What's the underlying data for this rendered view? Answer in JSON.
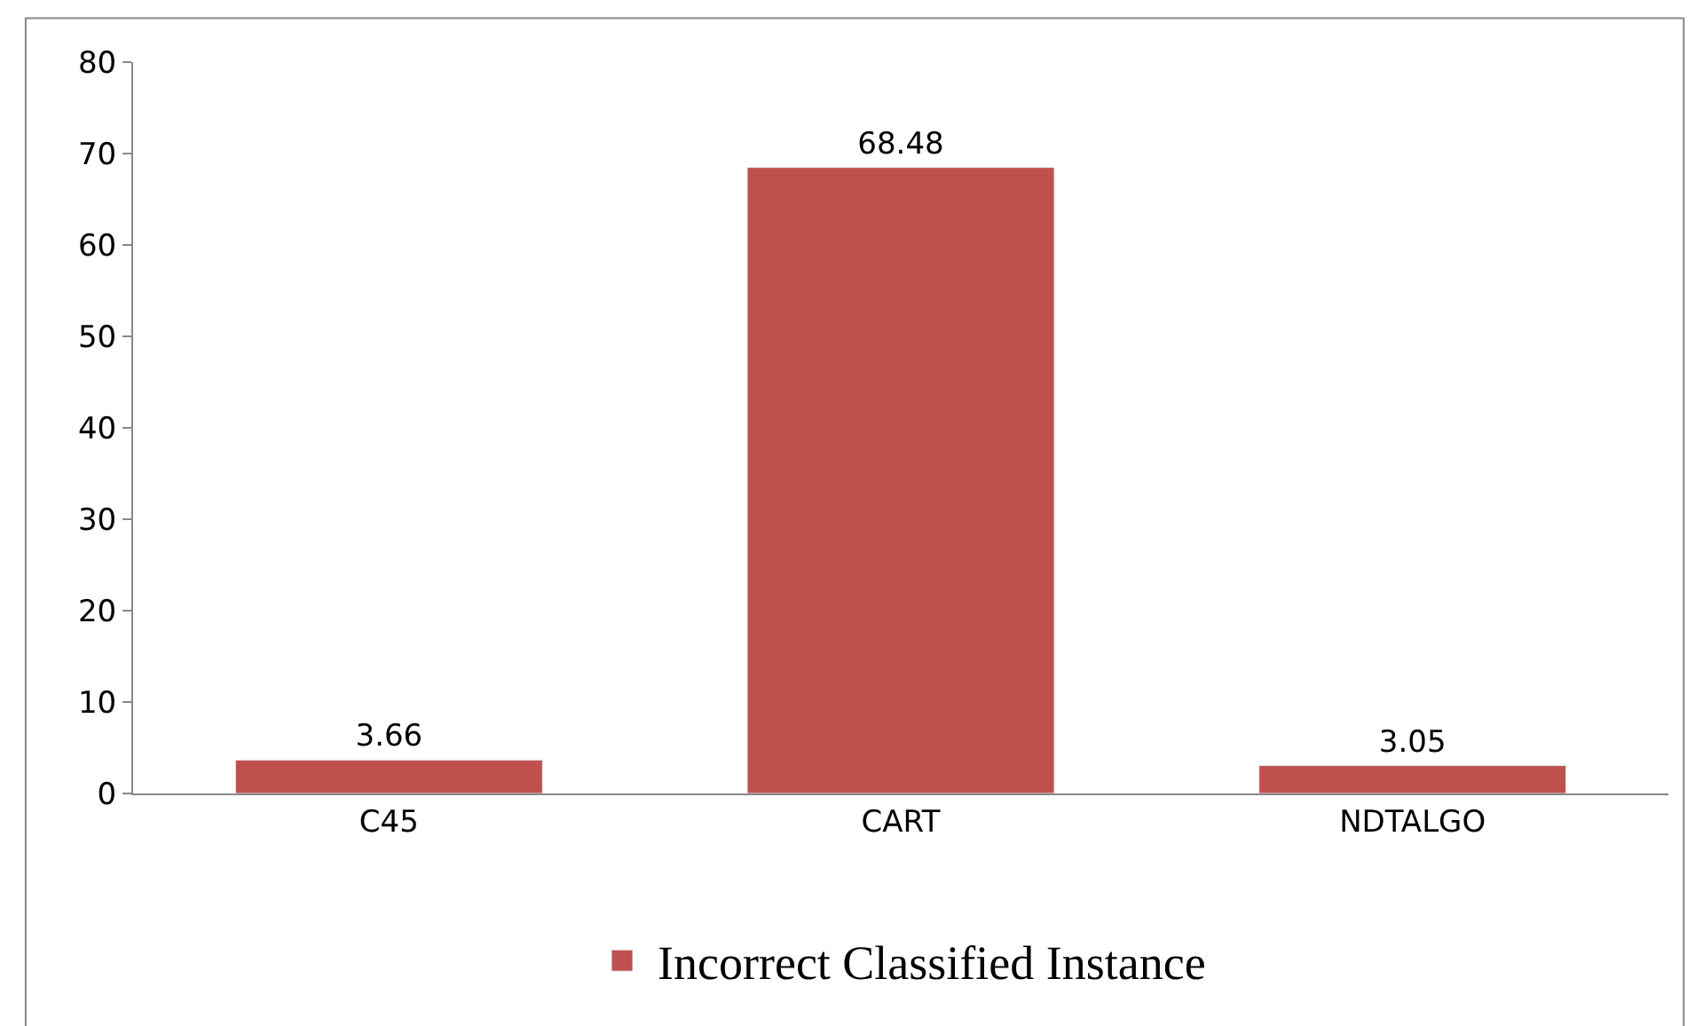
{
  "chart_data": {
    "type": "bar",
    "categories": [
      "C45",
      "CART",
      "NDTALGO"
    ],
    "series": [
      {
        "name": "Incorrect Classified Instance",
        "color": "#c0504d",
        "values": [
          3.66,
          68.48,
          3.05
        ]
      }
    ],
    "ylim": [
      0,
      80
    ],
    "yticks": [
      0,
      10,
      20,
      30,
      40,
      50,
      60,
      70,
      80
    ],
    "data_labels": true,
    "legend": "bottom"
  }
}
